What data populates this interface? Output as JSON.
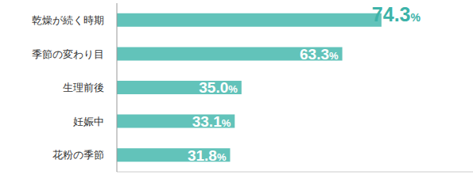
{
  "chart_data": {
    "type": "bar",
    "orientation": "horizontal",
    "categories": [
      "乾燥が続く時期",
      "季節の変わり目",
      "生理前後",
      "妊娠中",
      "花粉の季節"
    ],
    "values": [
      74.3,
      63.3,
      35.0,
      33.1,
      31.8
    ],
    "value_labels": [
      "74.3%",
      "63.3%",
      "35.0%",
      "33.1%",
      "31.8%"
    ],
    "color": "#62c3ba",
    "xlim": [
      0,
      100
    ],
    "grid": false,
    "data_labels": true,
    "tick_labels": "y"
  }
}
